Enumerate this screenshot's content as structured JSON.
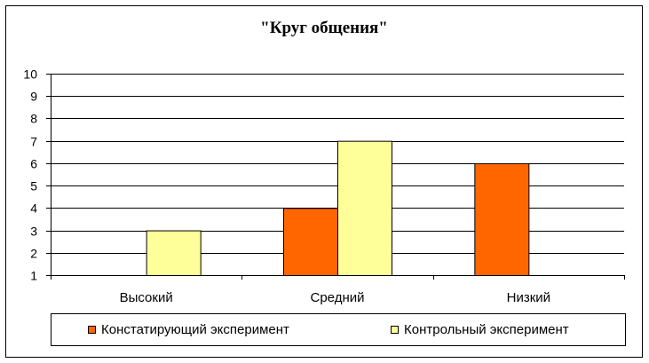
{
  "chart_data": {
    "type": "bar",
    "title": "\"Круг общения\"",
    "categories": [
      "Высокий",
      "Средний",
      "Низкий"
    ],
    "series": [
      {
        "name": "Констатирующий эксперимент",
        "values": [
          null,
          4,
          6
        ],
        "color": "#FF6600"
      },
      {
        "name": "Контрольный эксперимент",
        "values": [
          3,
          7,
          null
        ],
        "color": "#FFFF99"
      }
    ],
    "ylim": [
      1,
      10
    ],
    "yticks": [
      1,
      2,
      3,
      4,
      5,
      6,
      7,
      8,
      9,
      10
    ],
    "grid": true,
    "legend_position": "bottom"
  }
}
